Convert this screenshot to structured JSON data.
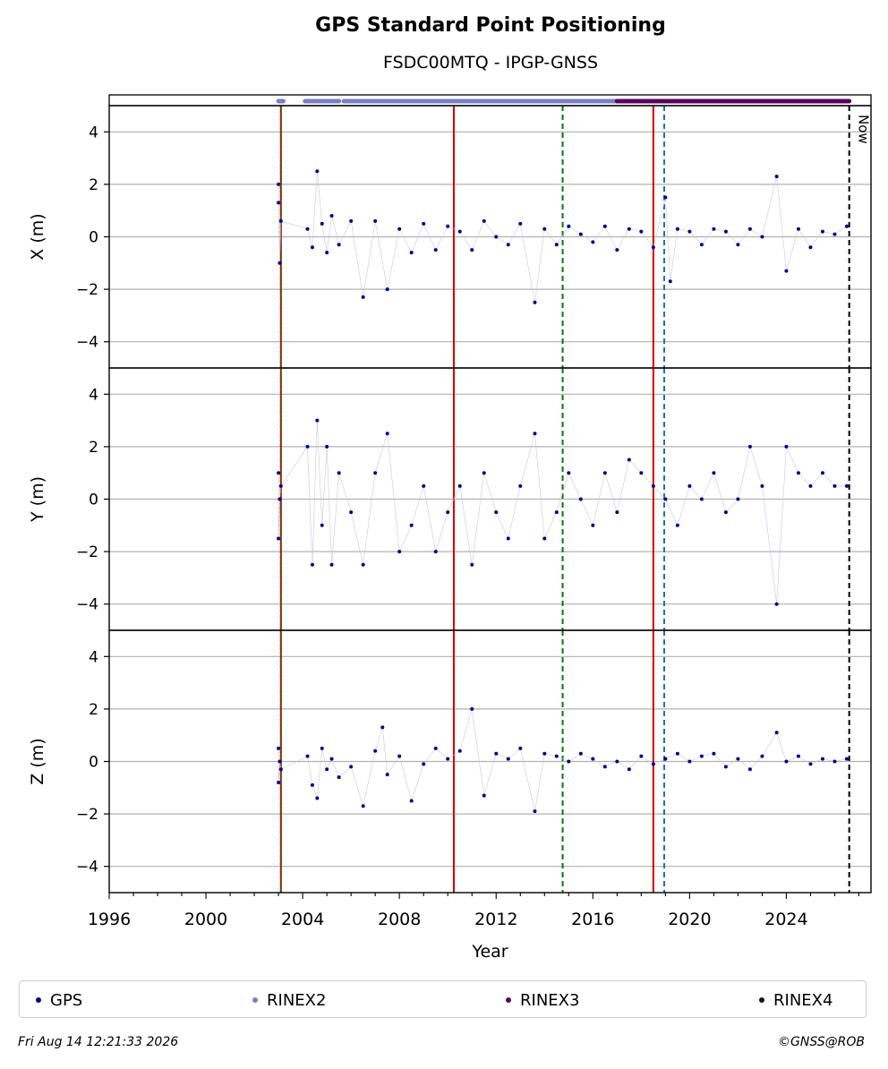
{
  "title": "GPS Standard Point Positioning",
  "subtitle": "FSDC00MTQ - IPGP-GNSS",
  "footer": {
    "timestamp": "Fri Aug 14 12:21:33 2026",
    "copyright": "©GNSS@ROB"
  },
  "now_label": "Now",
  "colors": {
    "gps": "#00008b",
    "rinex2": "#7b7fbf",
    "rinex3": "#5c005c",
    "rinex4": "#2a0a1a",
    "red_event": "#d40000",
    "green_event": "#007a00",
    "blue_event": "#1f6fb4",
    "now_line": "#000000"
  },
  "chart_data": {
    "type": "scatter",
    "xlabel": "Year",
    "xlim": [
      1996,
      2027.5
    ],
    "xticks": [
      "1996",
      "2000",
      "2004",
      "2008",
      "2012",
      "2016",
      "2020",
      "2024"
    ],
    "ylim": [
      -5,
      5
    ],
    "yticks": [
      "4",
      "2",
      "0",
      "−2",
      "−4"
    ],
    "grid": true,
    "legend_placement": "bottom",
    "legend": [
      "GPS",
      "RINEX2",
      "RINEX3",
      "RINEX4"
    ],
    "event_lines": [
      {
        "year": 2003.1,
        "color": "green/red",
        "style": "dotted"
      },
      {
        "year": 2010.25,
        "color": "red",
        "style": "solid"
      },
      {
        "year": 2014.75,
        "color": "green",
        "style": "dashed"
      },
      {
        "year": 2018.5,
        "color": "red",
        "style": "solid"
      },
      {
        "year": 2018.95,
        "color": "blue",
        "style": "dashed"
      },
      {
        "year": 2026.6,
        "color": "black",
        "style": "dashed",
        "label": "Now"
      }
    ],
    "data_availability": [
      {
        "name": "RINEX2",
        "segments": [
          [
            2003.0,
            2003.2
          ],
          [
            2004.1,
            2005.5
          ],
          [
            2005.7,
            2017.0
          ]
        ]
      },
      {
        "name": "RINEX3",
        "segments": [
          [
            2017.0,
            2026.6
          ]
        ]
      }
    ],
    "panels": [
      {
        "ylabel": "X (m)",
        "series": [
          {
            "name": "GPS",
            "x": [
              2003.0,
              2003.0,
              2003.05,
              2003.1,
              2004.2,
              2004.4,
              2004.6,
              2004.8,
              2005.0,
              2005.2,
              2005.5,
              2006.0,
              2006.5,
              2007.0,
              2007.5,
              2008.0,
              2008.5,
              2009.0,
              2009.5,
              2010.0,
              2010.5,
              2011.0,
              2011.5,
              2012.0,
              2012.5,
              2013.0,
              2013.6,
              2014.0,
              2014.5,
              2015.0,
              2015.5,
              2016.0,
              2016.5,
              2017.0,
              2017.5,
              2018.0,
              2018.5,
              2019.0,
              2019.2,
              2019.5,
              2020.0,
              2020.5,
              2021.0,
              2021.5,
              2022.0,
              2022.5,
              2023.0,
              2023.6,
              2024.0,
              2024.5,
              2025.0,
              2025.5,
              2026.0,
              2026.5
            ],
            "y": [
              2.0,
              1.3,
              -1.0,
              0.6,
              0.3,
              -0.4,
              2.5,
              0.5,
              -0.6,
              0.8,
              -0.3,
              0.6,
              -2.3,
              0.6,
              -2.0,
              0.3,
              -0.6,
              0.5,
              -0.5,
              0.4,
              0.2,
              -0.5,
              0.6,
              0.0,
              -0.3,
              0.5,
              -2.5,
              0.3,
              -0.3,
              0.4,
              0.1,
              -0.2,
              0.4,
              -0.5,
              0.3,
              0.2,
              -0.4,
              1.5,
              -1.7,
              0.3,
              0.2,
              -0.3,
              0.3,
              0.2,
              -0.3,
              0.3,
              0.0,
              2.3,
              -1.3,
              0.3,
              -0.4,
              0.2,
              0.1,
              0.4
            ]
          }
        ]
      },
      {
        "ylabel": "Y (m)",
        "series": [
          {
            "name": "GPS",
            "x": [
              2003.0,
              2003.0,
              2003.05,
              2003.1,
              2004.2,
              2004.4,
              2004.6,
              2004.8,
              2005.0,
              2005.2,
              2005.5,
              2006.0,
              2006.5,
              2007.0,
              2007.5,
              2008.0,
              2008.5,
              2009.0,
              2009.5,
              2010.0,
              2010.5,
              2011.0,
              2011.5,
              2012.0,
              2012.5,
              2013.0,
              2013.6,
              2014.0,
              2014.5,
              2015.0,
              2015.5,
              2016.0,
              2016.5,
              2017.0,
              2017.5,
              2018.0,
              2018.5,
              2019.0,
              2019.5,
              2020.0,
              2020.5,
              2021.0,
              2021.5,
              2022.0,
              2022.5,
              2023.0,
              2023.6,
              2024.0,
              2024.5,
              2025.0,
              2025.5,
              2026.0,
              2026.5
            ],
            "y": [
              1.0,
              -1.5,
              0.0,
              0.5,
              2.0,
              -2.5,
              3.0,
              -1.0,
              2.0,
              -2.5,
              1.0,
              -0.5,
              -2.5,
              1.0,
              2.5,
              -2.0,
              -1.0,
              0.5,
              -2.0,
              -0.5,
              0.5,
              -2.5,
              1.0,
              -0.5,
              -1.5,
              0.5,
              2.5,
              -1.5,
              -0.5,
              1.0,
              0.0,
              -1.0,
              1.0,
              -0.5,
              1.5,
              1.0,
              0.5,
              0.0,
              -1.0,
              0.5,
              0.0,
              1.0,
              -0.5,
              0.0,
              2.0,
              0.5,
              -4.0,
              2.0,
              1.0,
              0.5,
              1.0,
              0.5,
              0.5
            ]
          }
        ]
      },
      {
        "ylabel": "Z (m)",
        "series": [
          {
            "name": "GPS",
            "x": [
              2003.0,
              2003.0,
              2003.05,
              2003.1,
              2004.2,
              2004.4,
              2004.6,
              2004.8,
              2005.0,
              2005.2,
              2005.5,
              2006.0,
              2006.5,
              2007.0,
              2007.3,
              2007.5,
              2008.0,
              2008.5,
              2009.0,
              2009.5,
              2010.0,
              2010.5,
              2011.0,
              2011.5,
              2012.0,
              2012.5,
              2013.0,
              2013.6,
              2014.0,
              2014.5,
              2015.0,
              2015.5,
              2016.0,
              2016.5,
              2017.0,
              2017.5,
              2018.0,
              2018.5,
              2019.0,
              2019.5,
              2020.0,
              2020.5,
              2021.0,
              2021.5,
              2022.0,
              2022.5,
              2023.0,
              2023.6,
              2024.0,
              2024.5,
              2025.0,
              2025.5,
              2026.0,
              2026.5
            ],
            "y": [
              0.5,
              -0.8,
              0.0,
              -0.3,
              0.2,
              -0.9,
              -1.4,
              0.5,
              -0.3,
              0.1,
              -0.6,
              -0.2,
              -1.7,
              0.4,
              1.3,
              -0.5,
              0.2,
              -1.5,
              -0.1,
              0.5,
              0.1,
              0.4,
              2.0,
              -1.3,
              0.3,
              0.1,
              0.5,
              -1.9,
              0.3,
              0.2,
              0.0,
              0.3,
              0.1,
              -0.2,
              0.0,
              -0.3,
              0.2,
              -0.1,
              0.1,
              0.3,
              0.0,
              0.2,
              0.3,
              -0.2,
              0.1,
              -0.3,
              0.2,
              1.1,
              0.0,
              0.2,
              -0.1,
              0.1,
              0.0,
              0.1
            ]
          }
        ]
      }
    ]
  }
}
